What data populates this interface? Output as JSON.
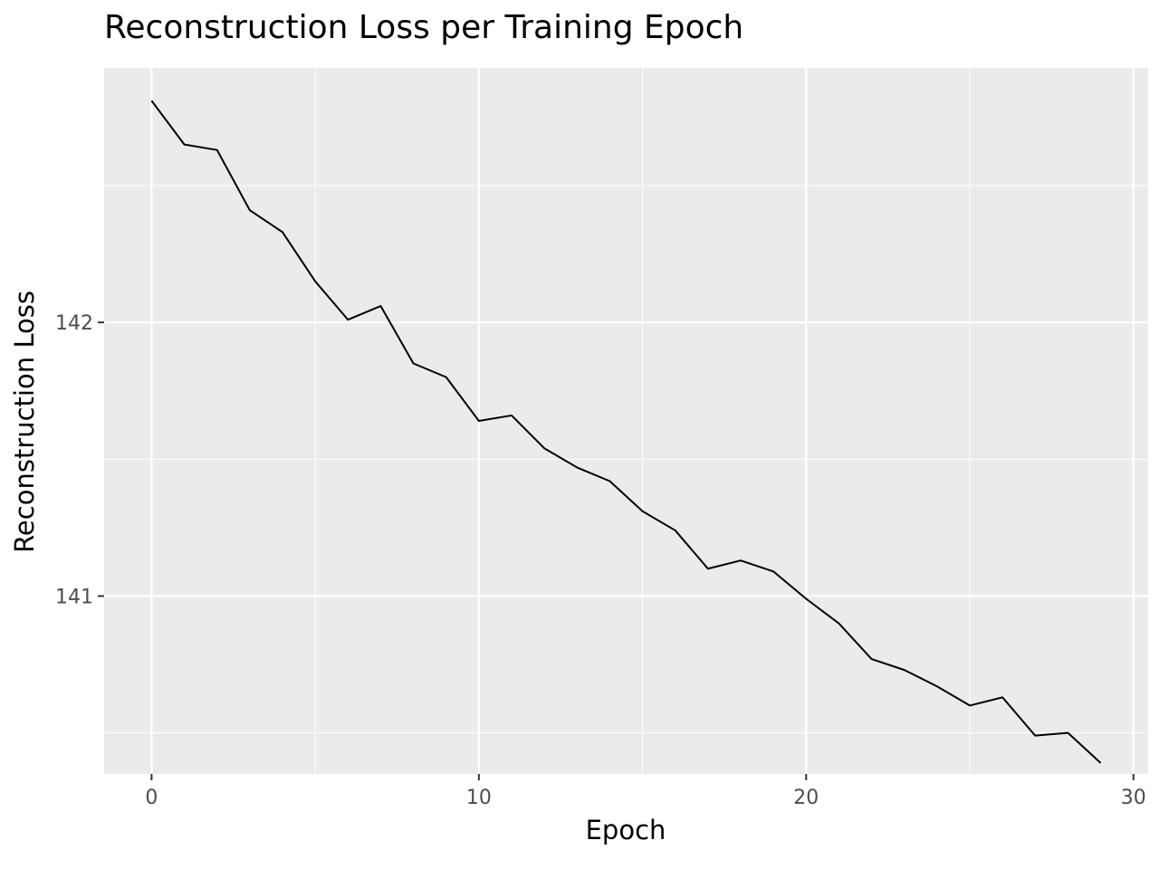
{
  "chart_data": {
    "type": "line",
    "title": "Reconstruction Loss per Training Epoch",
    "xlabel": "Epoch",
    "ylabel": "Reconstruction Loss",
    "xlim": [
      -1.45,
      30.45
    ],
    "ylim": [
      140.35,
      142.93
    ],
    "x_ticks": [
      0,
      10,
      20,
      30
    ],
    "x_minor_ticks": [
      5,
      15,
      25
    ],
    "y_ticks": [
      141,
      142
    ],
    "y_minor_ticks": [
      140.5,
      141.5,
      142.5
    ],
    "grid": true,
    "legend": "none",
    "colors": {
      "panel": "#ebebeb",
      "grid": "#ffffff",
      "line": "#000000",
      "tick_text": "#4d4d4d",
      "tick_mark": "#333333"
    },
    "series": [
      {
        "x": [
          0,
          1,
          2,
          3,
          4,
          5,
          6,
          7,
          8,
          9,
          10,
          11,
          12,
          13,
          14,
          15,
          16,
          17,
          18,
          19,
          20,
          21,
          22,
          23,
          24,
          25,
          26,
          27,
          28,
          29
        ],
        "values": [
          142.81,
          142.65,
          142.63,
          142.41,
          142.33,
          142.15,
          142.01,
          142.06,
          141.85,
          141.8,
          141.64,
          141.66,
          141.54,
          141.47,
          141.42,
          141.31,
          141.24,
          141.1,
          141.13,
          141.09,
          140.99,
          140.9,
          140.77,
          140.73,
          140.67,
          140.6,
          140.63,
          140.49,
          140.5,
          140.39
        ]
      }
    ]
  }
}
